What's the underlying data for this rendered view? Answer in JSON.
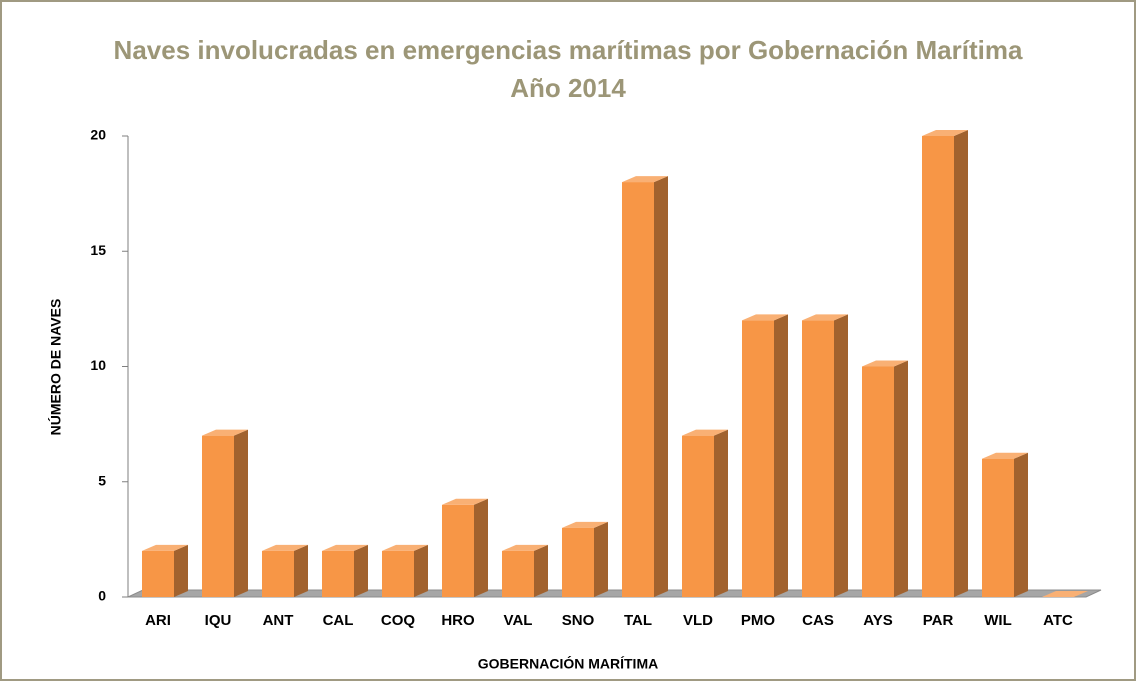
{
  "chart_data": {
    "type": "bar3d",
    "title": [
      "Naves involucradas en emergencias marítimas  por Gobernación Marítima",
      "Año 2014"
    ],
    "x_label": "GOBERNACIÓN MARÍTIMA",
    "y_label": "NÚMERO DE NAVES",
    "categories": [
      "ARI",
      "IQU",
      "ANT",
      "CAL",
      "COQ",
      "HRO",
      "VAL",
      "SNO",
      "TAL",
      "VLD",
      "PMO",
      "CAS",
      "AYS",
      "PAR",
      "WIL",
      "ATC"
    ],
    "values": [
      2,
      7,
      2,
      2,
      2,
      4,
      2,
      3,
      18,
      7,
      12,
      12,
      10,
      20,
      6,
      0
    ],
    "color": "#f79646",
    "ylim": [
      0,
      20
    ],
    "yticks": [
      0,
      5,
      10,
      15,
      20
    ],
    "grid": false
  }
}
